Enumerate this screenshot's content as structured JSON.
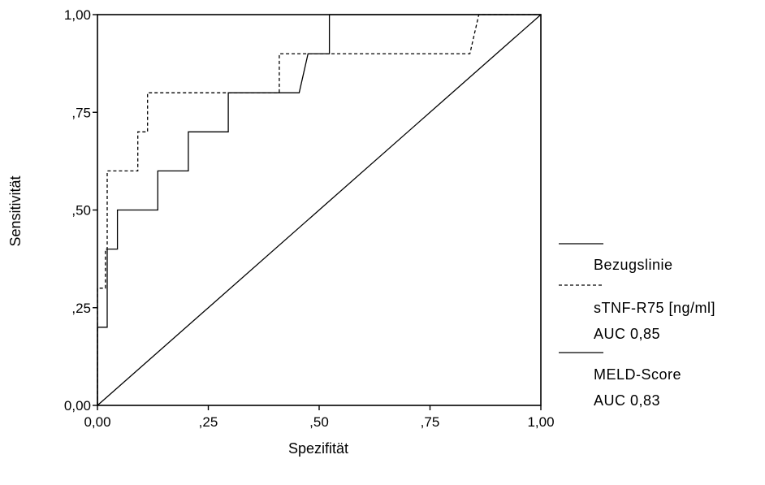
{
  "chart_data": {
    "type": "line",
    "xlabel": "Spezifität",
    "ylabel": "Sensitivität",
    "xlim": [
      0,
      1
    ],
    "ylim": [
      0,
      1
    ],
    "x_ticks": [
      "0,00",
      ",25",
      ",50",
      ",75",
      "1,00"
    ],
    "y_ticks": [
      "0,00",
      ",25",
      ",50",
      ",75",
      "1,00"
    ],
    "grid": false,
    "legend_position": "right",
    "series": [
      {
        "name": "Bezugslinie",
        "style": "solid",
        "x": [
          0,
          1
        ],
        "y": [
          0,
          1
        ]
      },
      {
        "name": "sTNF-R75 [ng/ml]",
        "annotation": "AUC 0,85",
        "style": "dashed",
        "x": [
          0,
          0,
          0.018,
          0.018,
          0.022,
          0.022,
          0.091,
          0.091,
          0.113,
          0.113,
          0.41,
          0.41,
          0.47,
          0.47,
          0.84,
          0.86,
          1.0
        ],
        "y": [
          0,
          0.3,
          0.3,
          0.4,
          0.4,
          0.6,
          0.6,
          0.7,
          0.7,
          0.8,
          0.8,
          0.9,
          0.9,
          0.9,
          0.9,
          1.0,
          1.0
        ]
      },
      {
        "name": "MELD-Score",
        "annotation": "AUC 0,83",
        "style": "solid",
        "x": [
          0,
          0,
          0.022,
          0.022,
          0.045,
          0.045,
          0.136,
          0.136,
          0.205,
          0.205,
          0.295,
          0.295,
          0.455,
          0.475,
          0.523,
          0.523,
          1.0
        ],
        "y": [
          0,
          0.2,
          0.2,
          0.4,
          0.4,
          0.5,
          0.5,
          0.6,
          0.6,
          0.7,
          0.7,
          0.8,
          0.8,
          0.9,
          0.9,
          1.0,
          1.0
        ]
      }
    ]
  }
}
